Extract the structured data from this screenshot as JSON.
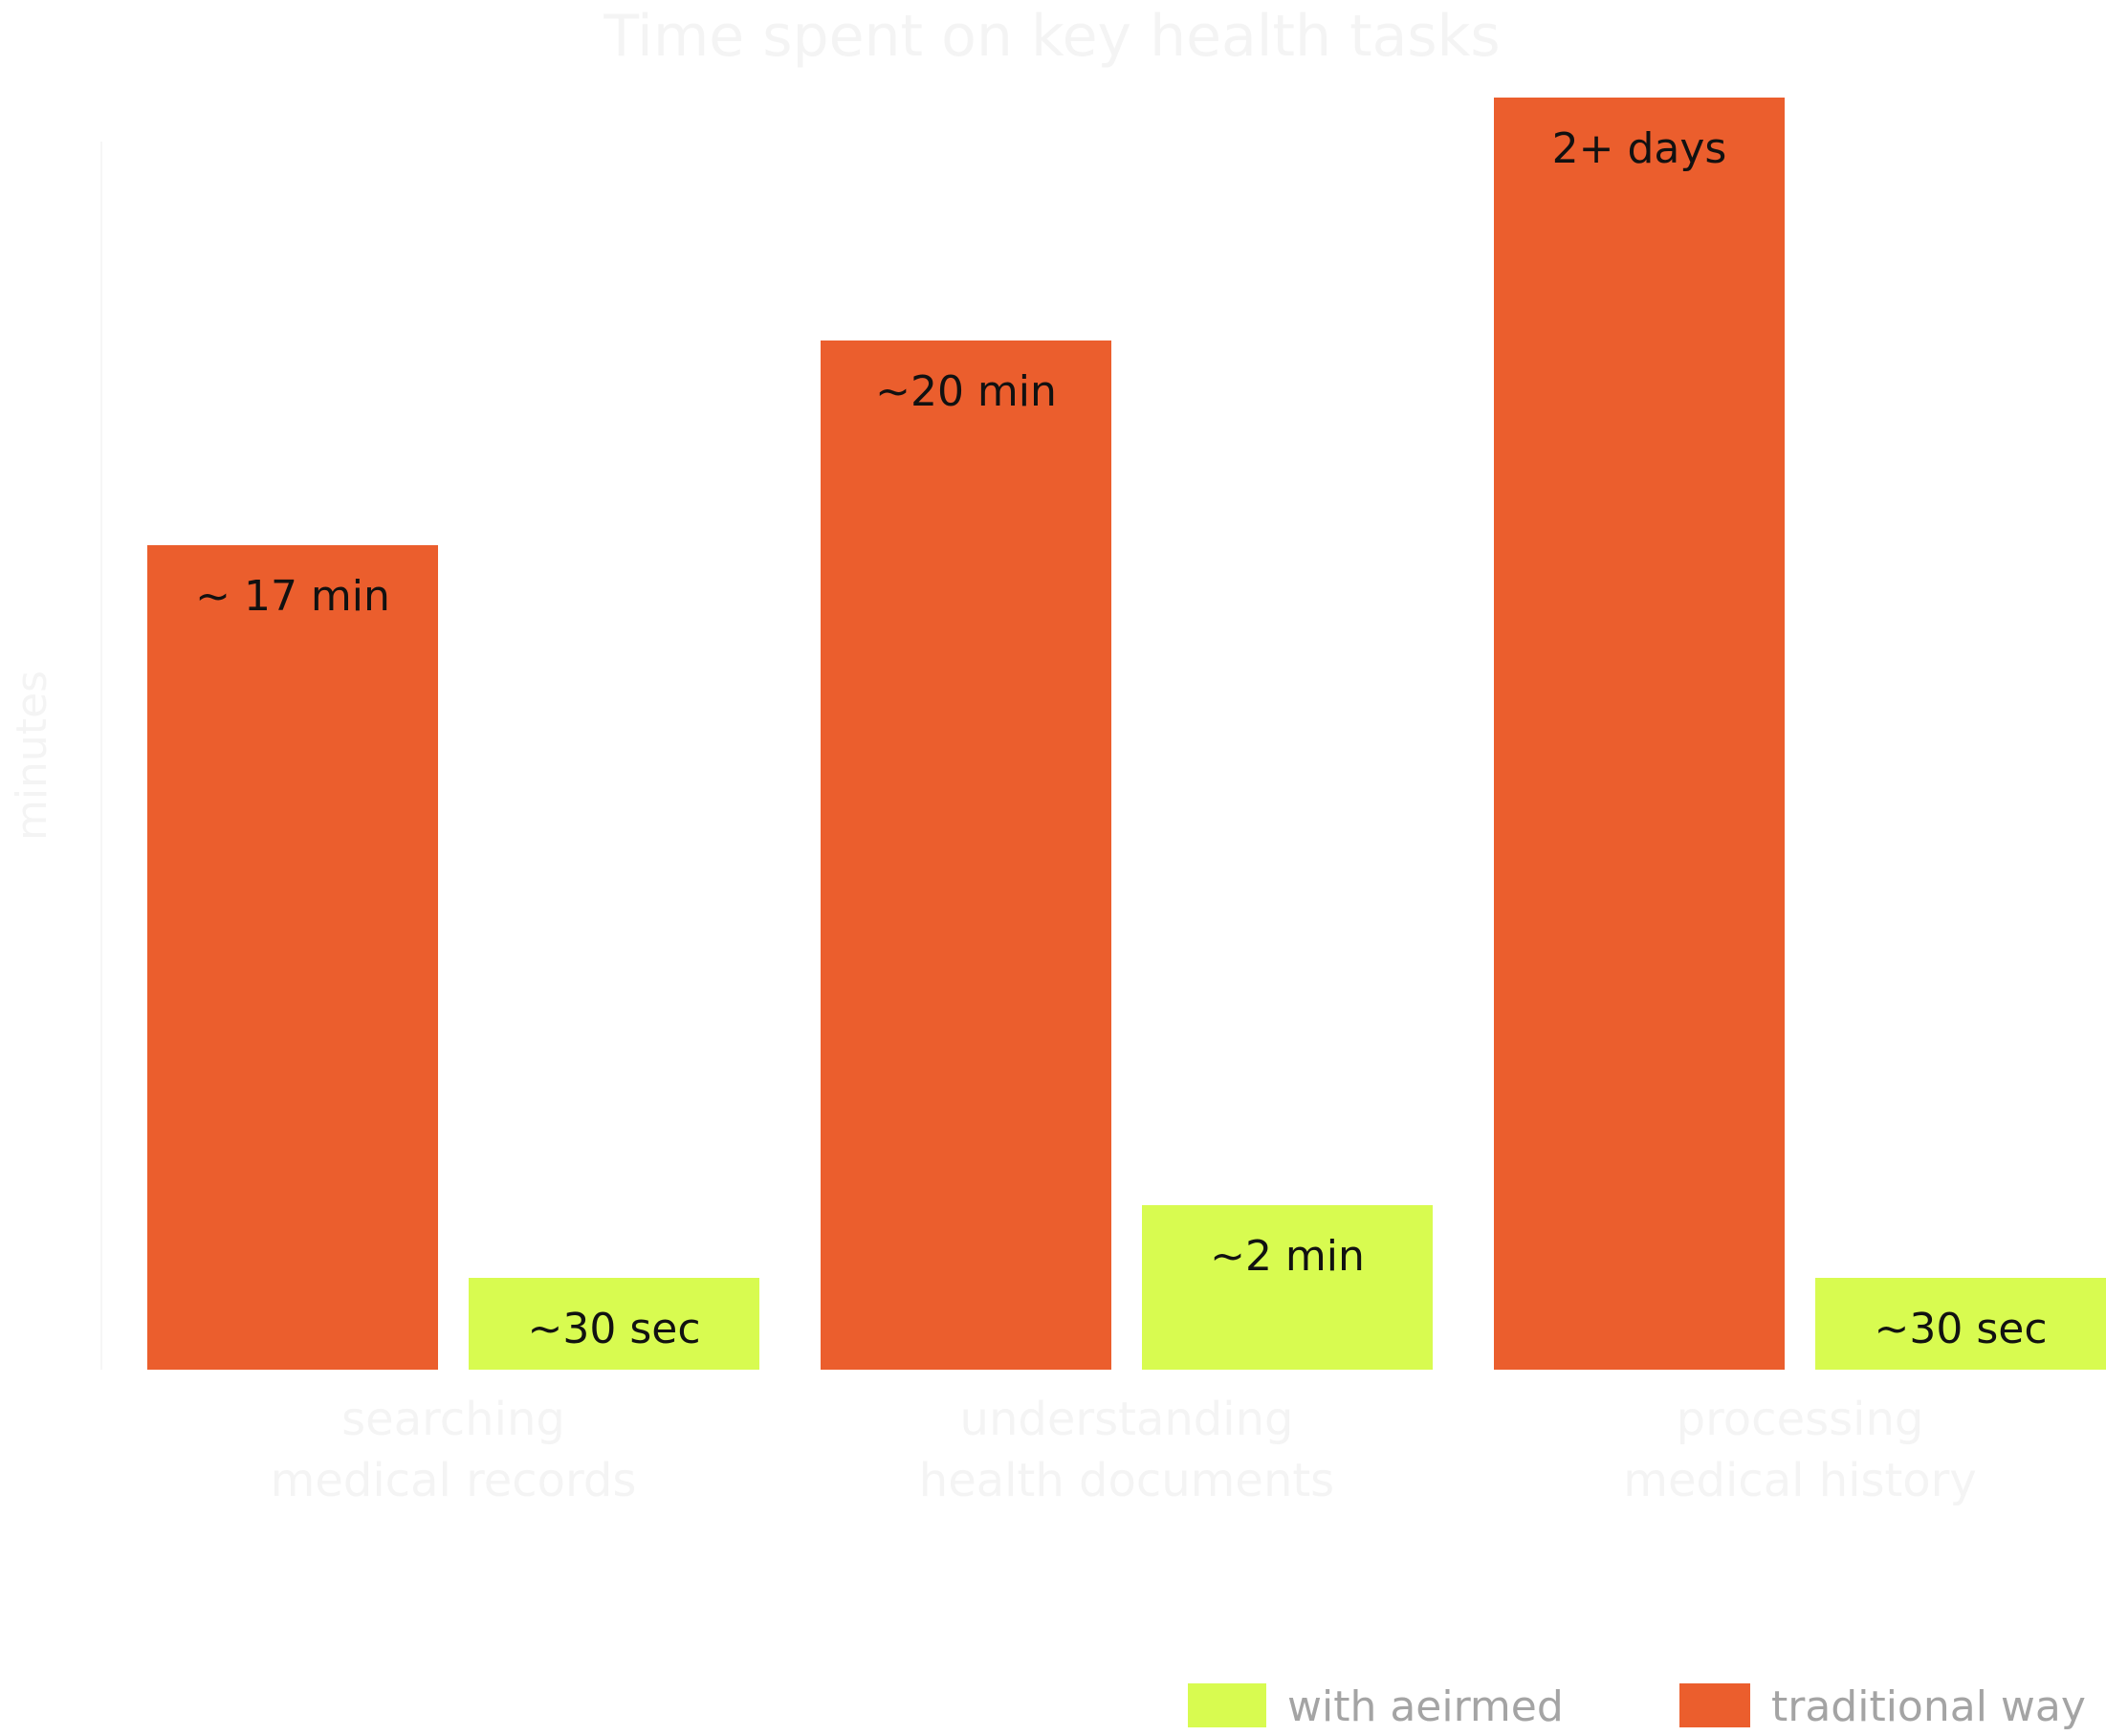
{
  "chart_data": {
    "type": "bar",
    "title": "Time spent on key health tasks",
    "ylabel": "minutes",
    "categories": [
      [
        "searching",
        "medical records"
      ],
      [
        "understanding",
        "health documents"
      ],
      [
        "processing",
        "medical history"
      ]
    ],
    "series": [
      {
        "name": "traditional way",
        "color": "#eb5e2d",
        "values": [
          17,
          20,
          2880
        ],
        "labels": [
          "~ 17 min",
          "~20 min",
          "2+ days"
        ]
      },
      {
        "name": "with aeirmed",
        "color": "#d8fb50",
        "values": [
          0.5,
          2,
          0.5
        ],
        "labels": [
          "~30 sec",
          "~2 min",
          "~30 sec"
        ]
      }
    ],
    "legend_order": [
      "with aeirmed",
      "traditional way"
    ],
    "legend": "bottom-right",
    "grid": false,
    "note": "bar heights are not to scale; values are the printed labels"
  }
}
